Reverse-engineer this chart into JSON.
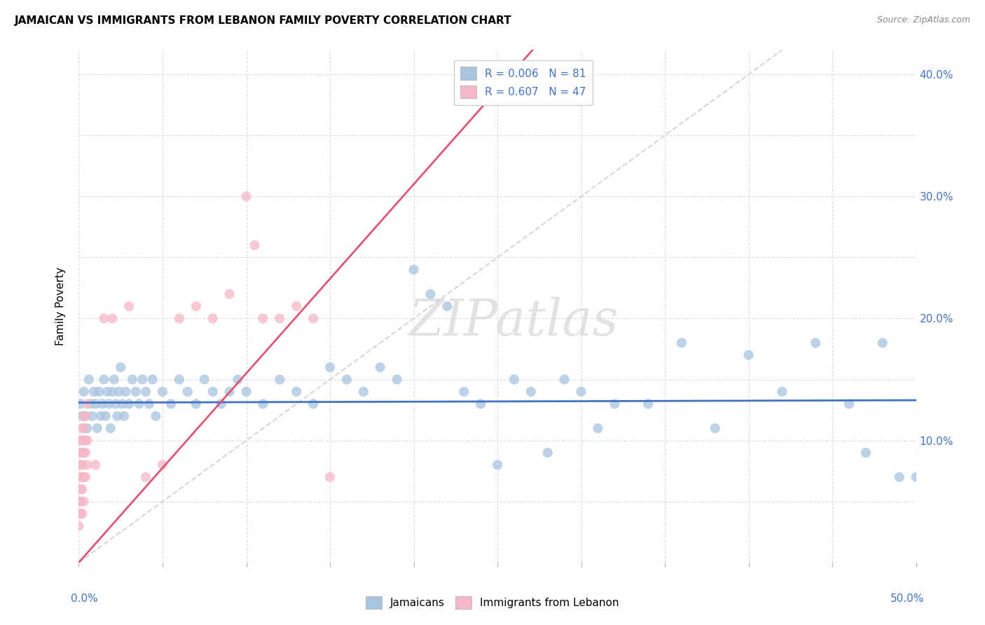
{
  "title": "JAMAICAN VS IMMIGRANTS FROM LEBANON FAMILY POVERTY CORRELATION CHART",
  "source": "Source: ZipAtlas.com",
  "ylabel": "Family Poverty",
  "legend_labels": [
    "Jamaicans",
    "Immigrants from Lebanon"
  ],
  "r_values": [
    0.006,
    0.607
  ],
  "n_values": [
    81,
    47
  ],
  "blue_color": "#a8c4e0",
  "pink_color": "#f4b8c8",
  "blue_line_color": "#4472c4",
  "pink_line_color": "#e05575",
  "blue_scatter": [
    [
      0.001,
      0.13
    ],
    [
      0.002,
      0.12
    ],
    [
      0.003,
      0.14
    ],
    [
      0.004,
      0.12
    ],
    [
      0.005,
      0.11
    ],
    [
      0.006,
      0.15
    ],
    [
      0.007,
      0.13
    ],
    [
      0.008,
      0.12
    ],
    [
      0.009,
      0.14
    ],
    [
      0.01,
      0.13
    ],
    [
      0.011,
      0.11
    ],
    [
      0.012,
      0.14
    ],
    [
      0.013,
      0.12
    ],
    [
      0.014,
      0.13
    ],
    [
      0.015,
      0.15
    ],
    [
      0.016,
      0.12
    ],
    [
      0.017,
      0.14
    ],
    [
      0.018,
      0.13
    ],
    [
      0.019,
      0.11
    ],
    [
      0.02,
      0.14
    ],
    [
      0.021,
      0.15
    ],
    [
      0.022,
      0.13
    ],
    [
      0.023,
      0.12
    ],
    [
      0.024,
      0.14
    ],
    [
      0.025,
      0.16
    ],
    [
      0.026,
      0.13
    ],
    [
      0.027,
      0.12
    ],
    [
      0.028,
      0.14
    ],
    [
      0.03,
      0.13
    ],
    [
      0.032,
      0.15
    ],
    [
      0.034,
      0.14
    ],
    [
      0.036,
      0.13
    ],
    [
      0.038,
      0.15
    ],
    [
      0.04,
      0.14
    ],
    [
      0.042,
      0.13
    ],
    [
      0.044,
      0.15
    ],
    [
      0.046,
      0.12
    ],
    [
      0.05,
      0.14
    ],
    [
      0.055,
      0.13
    ],
    [
      0.06,
      0.15
    ],
    [
      0.065,
      0.14
    ],
    [
      0.07,
      0.13
    ],
    [
      0.075,
      0.15
    ],
    [
      0.08,
      0.14
    ],
    [
      0.085,
      0.13
    ],
    [
      0.09,
      0.14
    ],
    [
      0.095,
      0.15
    ],
    [
      0.1,
      0.14
    ],
    [
      0.11,
      0.13
    ],
    [
      0.12,
      0.15
    ],
    [
      0.13,
      0.14
    ],
    [
      0.14,
      0.13
    ],
    [
      0.15,
      0.16
    ],
    [
      0.16,
      0.15
    ],
    [
      0.17,
      0.14
    ],
    [
      0.18,
      0.16
    ],
    [
      0.19,
      0.15
    ],
    [
      0.2,
      0.24
    ],
    [
      0.21,
      0.22
    ],
    [
      0.22,
      0.21
    ],
    [
      0.23,
      0.14
    ],
    [
      0.24,
      0.13
    ],
    [
      0.25,
      0.08
    ],
    [
      0.26,
      0.15
    ],
    [
      0.27,
      0.14
    ],
    [
      0.28,
      0.09
    ],
    [
      0.29,
      0.15
    ],
    [
      0.3,
      0.14
    ],
    [
      0.31,
      0.11
    ],
    [
      0.32,
      0.13
    ],
    [
      0.34,
      0.13
    ],
    [
      0.36,
      0.18
    ],
    [
      0.38,
      0.11
    ],
    [
      0.4,
      0.17
    ],
    [
      0.42,
      0.14
    ],
    [
      0.44,
      0.18
    ],
    [
      0.46,
      0.13
    ],
    [
      0.47,
      0.09
    ],
    [
      0.48,
      0.18
    ],
    [
      0.49,
      0.07
    ],
    [
      0.5,
      0.07
    ]
  ],
  "pink_scatter": [
    [
      0.0,
      0.03
    ],
    [
      0.0,
      0.04
    ],
    [
      0.0,
      0.05
    ],
    [
      0.001,
      0.04
    ],
    [
      0.001,
      0.05
    ],
    [
      0.001,
      0.06
    ],
    [
      0.001,
      0.07
    ],
    [
      0.001,
      0.08
    ],
    [
      0.001,
      0.09
    ],
    [
      0.001,
      0.1
    ],
    [
      0.002,
      0.04
    ],
    [
      0.002,
      0.06
    ],
    [
      0.002,
      0.07
    ],
    [
      0.002,
      0.08
    ],
    [
      0.002,
      0.09
    ],
    [
      0.002,
      0.1
    ],
    [
      0.002,
      0.11
    ],
    [
      0.003,
      0.05
    ],
    [
      0.003,
      0.07
    ],
    [
      0.003,
      0.09
    ],
    [
      0.003,
      0.1
    ],
    [
      0.003,
      0.11
    ],
    [
      0.003,
      0.12
    ],
    [
      0.004,
      0.07
    ],
    [
      0.004,
      0.09
    ],
    [
      0.004,
      0.1
    ],
    [
      0.004,
      0.12
    ],
    [
      0.005,
      0.08
    ],
    [
      0.005,
      0.1
    ],
    [
      0.005,
      0.13
    ],
    [
      0.01,
      0.08
    ],
    [
      0.015,
      0.2
    ],
    [
      0.02,
      0.2
    ],
    [
      0.03,
      0.21
    ],
    [
      0.04,
      0.07
    ],
    [
      0.05,
      0.08
    ],
    [
      0.06,
      0.2
    ],
    [
      0.07,
      0.21
    ],
    [
      0.08,
      0.2
    ],
    [
      0.09,
      0.22
    ],
    [
      0.1,
      0.3
    ],
    [
      0.105,
      0.26
    ],
    [
      0.11,
      0.2
    ],
    [
      0.12,
      0.2
    ],
    [
      0.13,
      0.21
    ],
    [
      0.14,
      0.2
    ],
    [
      0.15,
      0.07
    ]
  ],
  "xlim": [
    0,
    0.5
  ],
  "ylim": [
    0,
    0.42
  ],
  "xticks": [
    0.0,
    0.05,
    0.1,
    0.15,
    0.2,
    0.25,
    0.3,
    0.35,
    0.4,
    0.45,
    0.5
  ],
  "yticks": [
    0.0,
    0.05,
    0.1,
    0.15,
    0.2,
    0.25,
    0.3,
    0.35,
    0.4
  ],
  "ytick_labels_right": [
    "",
    "",
    "10.0%",
    "",
    "20.0%",
    "",
    "30.0%",
    "",
    "40.0%"
  ],
  "watermark": "ZIPatlas",
  "background_color": "#ffffff",
  "title_fontsize": 11,
  "marker_size": 70,
  "blue_line_y_intercept": 0.131,
  "blue_line_slope": 0.004,
  "pink_line_y_intercept": 0.0,
  "pink_line_slope": 1.55
}
